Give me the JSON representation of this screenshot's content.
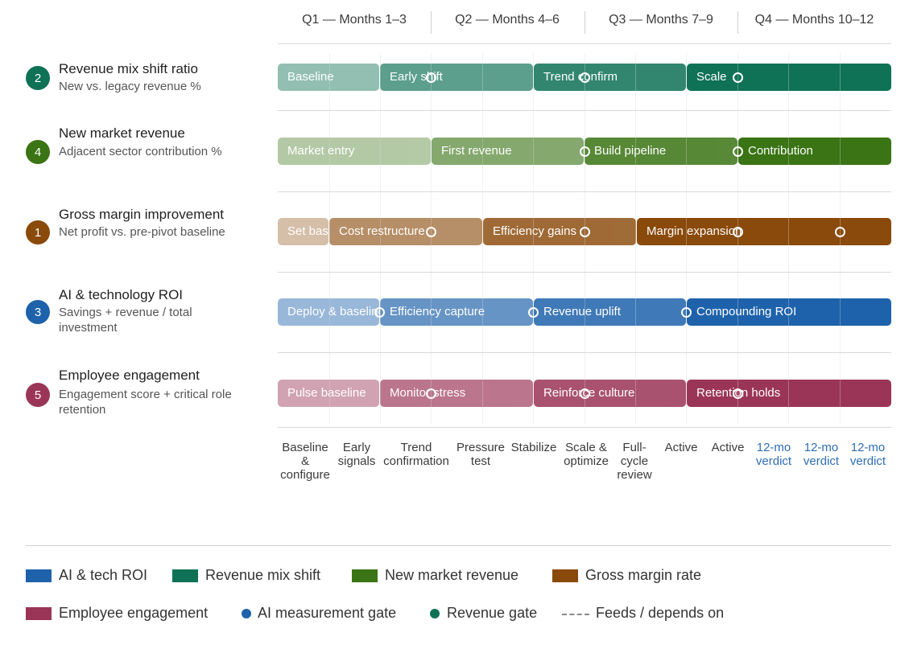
{
  "quarters": [
    "Q1 — Months 1–3",
    "Q2 — Months 4–6",
    "Q3 — Months 7–9",
    "Q4 — Months 10–12"
  ],
  "rows": [
    {
      "badge": "2",
      "title": "Revenue mix shift ratio",
      "subtitle": "New vs. legacy revenue %",
      "color": "#0f7256",
      "segments": [
        "Baseline",
        "Early shift",
        "Trend confirm",
        "Scale"
      ]
    },
    {
      "badge": "4",
      "title": "New market revenue",
      "subtitle": "Adjacent sector contribution %",
      "color": "#3a7414",
      "segments": [
        "Market entry",
        "First revenue",
        "Build pipeline",
        "Contribution"
      ]
    },
    {
      "badge": "1",
      "title": "Gross margin improvement",
      "subtitle": "Net profit vs. pre-pivot baseline",
      "color": "#8a4a0b",
      "segments": [
        "Set baseline",
        "Cost restructure",
        "Efficiency gains",
        "Margin expansion"
      ]
    },
    {
      "badge": "3",
      "title": "AI & technology ROI",
      "subtitle": "Savings + revenue / total investment",
      "color": "#1e62ab",
      "segments": [
        "Deploy & baseline",
        "Efficiency capture",
        "Revenue uplift",
        "Compounding ROI"
      ]
    },
    {
      "badge": "5",
      "title": "Employee engagement",
      "subtitle": "Engagement score + critical role retention",
      "color": "#9b3557",
      "segments": [
        "Pulse baseline",
        "Monitor stress",
        "Reinforce culture",
        "Retention holds"
      ]
    }
  ],
  "phases": [
    {
      "label": "Baseline & configure",
      "highlight": false
    },
    {
      "label": "Early signals",
      "highlight": false
    },
    {
      "label": "Trend confirmation",
      "highlight": false
    },
    {
      "label": "Pressure test",
      "highlight": false
    },
    {
      "label": "Stabilize",
      "highlight": false
    },
    {
      "label": "Scale & optimize",
      "highlight": false
    },
    {
      "label": "Full-cycle review",
      "highlight": false
    },
    {
      "label": "Active",
      "highlight": false
    },
    {
      "label": "Active",
      "highlight": false
    },
    {
      "label": "12-mo verdict",
      "highlight": true
    },
    {
      "label": "12-mo verdict",
      "highlight": true
    },
    {
      "label": "12-mo verdict",
      "highlight": true
    }
  ],
  "legend": [
    {
      "label": "AI & tech ROI",
      "color": "#1e62ab",
      "kind": "swatch"
    },
    {
      "label": "Revenue mix shift",
      "color": "#0f7256",
      "kind": "swatch"
    },
    {
      "label": "New market revenue",
      "color": "#3a7414",
      "kind": "swatch"
    },
    {
      "label": "Gross margin rate",
      "color": "#8a4a0b",
      "kind": "swatch"
    },
    {
      "label": "Employee engagement",
      "color": "#9b3557",
      "kind": "swatch"
    },
    {
      "label": "AI measurement gate",
      "color": "#1e62ab",
      "kind": "dot"
    },
    {
      "label": "Revenue gate",
      "color": "#0f7256",
      "kind": "dot"
    },
    {
      "label": "Feeds / depends on",
      "color": "#8a8a8a",
      "kind": "dash"
    }
  ]
}
